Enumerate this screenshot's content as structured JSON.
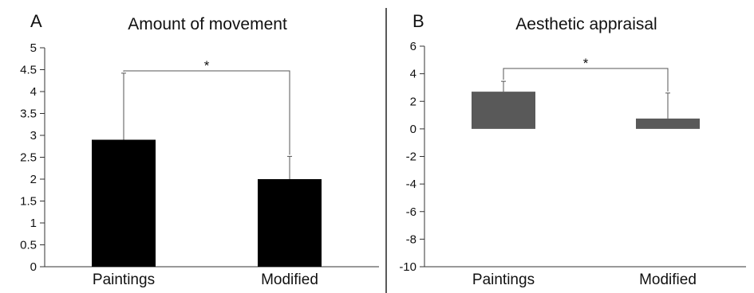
{
  "figure": {
    "panels": [
      {
        "letter": "A"
      },
      {
        "letter": "B"
      }
    ]
  },
  "chart_data": [
    {
      "type": "bar",
      "title": "Amount of movement",
      "categories": [
        "Paintings",
        "Modified"
      ],
      "values": [
        2.9,
        2.0
      ],
      "error_upper": [
        4.42,
        2.52
      ],
      "ylim": [
        0,
        5
      ],
      "yticks": [
        0,
        0.5,
        1,
        1.5,
        2,
        2.5,
        3,
        3.5,
        4,
        4.5,
        5
      ],
      "ytick_labels": [
        "0",
        "0.5",
        "1",
        "1.5",
        "2",
        "2.5",
        "3",
        "3.5",
        "4",
        "4.5",
        "5"
      ],
      "bar_color": "#000000",
      "significance": {
        "from": "Paintings",
        "to": "Modified",
        "label": "*"
      },
      "xlabel": "",
      "ylabel": "",
      "grid": false
    },
    {
      "type": "bar",
      "title": "Aesthetic appraisal",
      "categories": [
        "Paintings",
        "Modified"
      ],
      "values": [
        2.7,
        0.75
      ],
      "error_upper": [
        3.45,
        2.6
      ],
      "ylim": [
        -10,
        6
      ],
      "yticks": [
        -10,
        -8,
        -6,
        -4,
        -2,
        0,
        2,
        4,
        6
      ],
      "ytick_labels": [
        "-10",
        "-8",
        "-6",
        "-4",
        "-2",
        "0",
        "2",
        "4",
        "6"
      ],
      "bar_color": "#595959",
      "significance": {
        "from": "Paintings",
        "to": "Modified",
        "label": "*"
      },
      "xlabel": "",
      "ylabel": "",
      "grid": false
    }
  ]
}
